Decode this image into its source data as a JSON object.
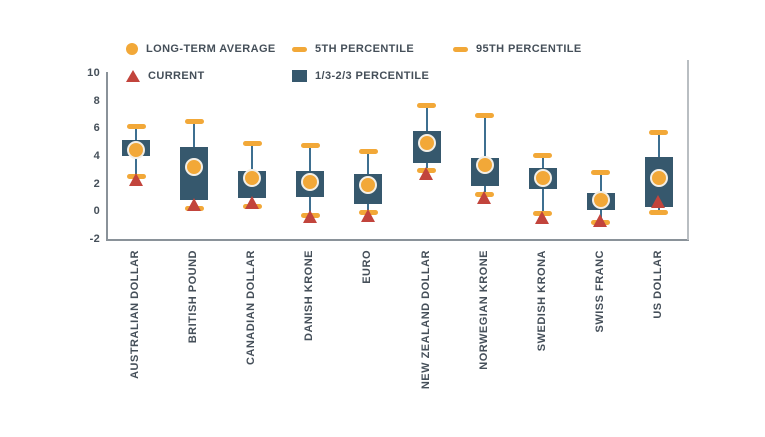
{
  "legend": [
    {
      "label": "LONG-TERM AVERAGE",
      "marker": "circle"
    },
    {
      "label": "5TH PERCENTILE",
      "marker": "dash"
    },
    {
      "label": "95TH PERCENTILE",
      "marker": "dash"
    },
    {
      "label": "CURRENT",
      "marker": "triangle"
    },
    {
      "label": "1/3-2/3 PERCENTILE",
      "marker": "box"
    }
  ],
  "colors": {
    "orange": "#F2A838",
    "red": "#C2443C",
    "box": "#36586D",
    "whisker": "#3E6F90",
    "text": "#454F59",
    "axis": "#8A9299"
  },
  "chart_data": {
    "type": "box-percentile",
    "title": "",
    "xlabel": "",
    "ylabel": "",
    "ylim": [
      -2,
      10
    ],
    "yticks": [
      10,
      8,
      6,
      4,
      2,
      0,
      -2
    ],
    "grid": false,
    "legend_position": "top",
    "categories": [
      "AUSTRALIAN DOLLAR",
      "BRITISH POUND",
      "CANADIAN DOLLAR",
      "DANISH KRONE",
      "EURO",
      "NEW ZEALAND DOLLAR",
      "NORWEGIAN KRONE",
      "SWEDISH KRONA",
      "SWISS FRANC",
      "US DOLLAR"
    ],
    "series": [
      {
        "name": "95th percentile",
        "values": [
          6.2,
          6.6,
          5.0,
          4.8,
          4.4,
          7.7,
          7.0,
          4.1,
          2.9,
          5.8
        ]
      },
      {
        "name": "2/3 percentile (box top)",
        "values": [
          5.2,
          4.7,
          3.0,
          3.0,
          2.8,
          5.9,
          3.9,
          3.2,
          1.4,
          4.0
        ]
      },
      {
        "name": "long-term average",
        "values": [
          4.5,
          3.3,
          2.5,
          2.2,
          2.0,
          5.0,
          3.4,
          2.5,
          0.9,
          2.5
        ]
      },
      {
        "name": "1/3 percentile (box bottom)",
        "values": [
          4.1,
          0.9,
          1.0,
          1.1,
          0.6,
          3.6,
          1.9,
          1.7,
          0.2,
          0.4
        ]
      },
      {
        "name": "5th percentile",
        "values": [
          2.6,
          0.3,
          0.4,
          -0.2,
          0.0,
          3.0,
          1.3,
          -0.1,
          -0.7,
          0.0
        ]
      },
      {
        "name": "current",
        "values": [
          2.4,
          0.6,
          0.7,
          -0.3,
          -0.2,
          2.8,
          1.1,
          -0.4,
          -0.6,
          0.8
        ]
      }
    ]
  }
}
